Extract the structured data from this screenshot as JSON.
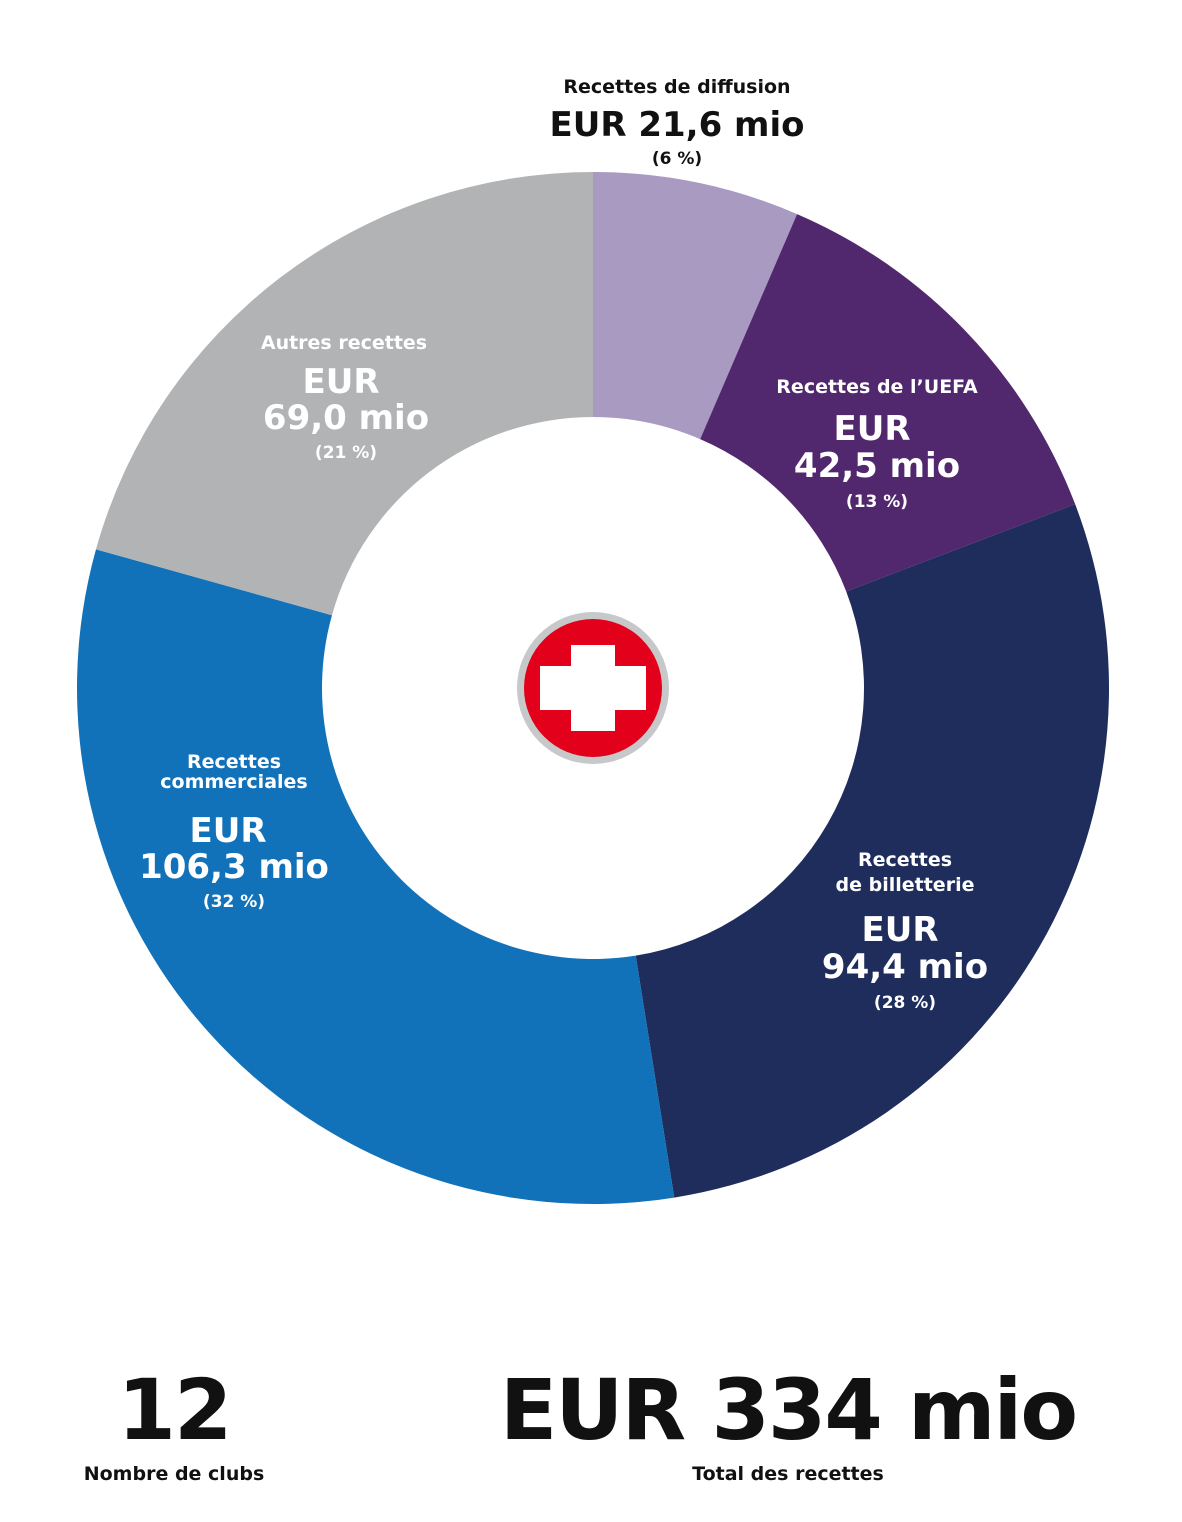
{
  "chart_data": {
    "type": "donut",
    "title": "",
    "unit": "EUR mio",
    "segments": [
      {
        "name": "Recettes de diffusion",
        "value": 21.6,
        "value_label": "EUR 21,6 mio",
        "percent_label": "(6 %)",
        "color": "#a99ac1"
      },
      {
        "name": "Recettes de l’UEFA",
        "value": 42.5,
        "value_label": "EUR 42,5 mio",
        "percent_label": "(13 %)",
        "color": "#51276e"
      },
      {
        "name": "Recettes de billetterie",
        "value": 94.4,
        "value_label": "EUR 94,4 mio",
        "percent_label": "(28 %)",
        "color": "#1e2d5c"
      },
      {
        "name": "Recettes commerciales",
        "value": 106.3,
        "value_label": "EUR 106,3 mio",
        "percent_label": "(32 %)",
        "color": "#1272b9"
      },
      {
        "name": "Autres recettes",
        "value": 69.0,
        "value_label": "EUR 69,0 mio",
        "percent_label": "(21 %)",
        "color": "#b1b3b4"
      }
    ],
    "center_icon": "swiss-flag-icon",
    "center_colors": {
      "flag_red": "#e2001a",
      "ring": "#c6c8ca"
    }
  },
  "labels": {
    "diffusion": {
      "name": "Recettes de diffusion",
      "value": "EUR 21,6 mio",
      "pct": "(6 %)"
    },
    "uefa": {
      "name": "Recettes de l’UEFA",
      "value_line1": "EUR",
      "value_line2": "42,5 mio",
      "pct": "(13 %)"
    },
    "billetterie": {
      "name_line1": "Recettes",
      "name_line2": "de billetterie",
      "value_line1": "EUR",
      "value_line2": "94,4 mio",
      "pct": "(28 %)"
    },
    "commerciales": {
      "name_line1": "Recettes",
      "name_line2": "commerciales",
      "value_line1": "EUR",
      "value_line2": "106,3 mio",
      "pct": "(32 %)"
    },
    "autres": {
      "name": "Autres recettes",
      "value_line1": "EUR",
      "value_line2": "69,0 mio",
      "pct": "(21 %)"
    }
  },
  "stats": {
    "clubs": {
      "value": "12",
      "label": "Nombre de clubs"
    },
    "total": {
      "value": "EUR 334 mio",
      "label": "Total des recettes"
    }
  }
}
